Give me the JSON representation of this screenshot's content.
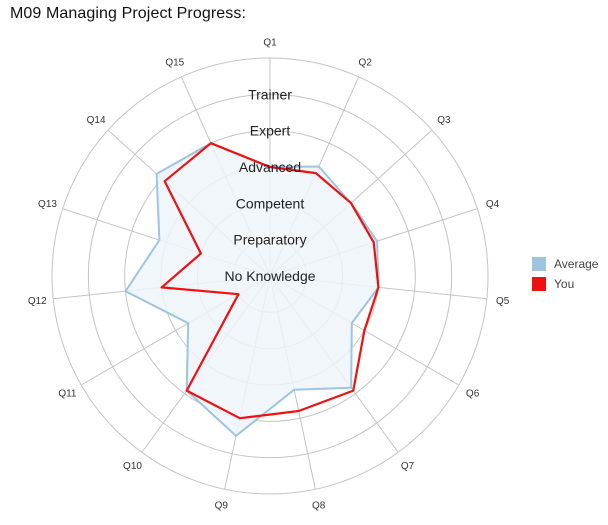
{
  "title": "M09 Managing Project Progress:",
  "chart_data": {
    "type": "radar",
    "categories": [
      "Q1",
      "Q2",
      "Q3",
      "Q4",
      "Q5",
      "Q6",
      "Q7",
      "Q8",
      "Q9",
      "Q10",
      "Q11",
      "Q12",
      "Q13",
      "Q14",
      "Q15"
    ],
    "levels": [
      "No Knowledge",
      "Preparatory",
      "Competent",
      "Advanced",
      "Expert",
      "Trainer"
    ],
    "rmax": 5,
    "series": [
      {
        "name": "Average",
        "color": "#9ec5e0",
        "fill": "#eef5fa",
        "values": [
          3.0,
          3.3,
          3.0,
          3.1,
          3.0,
          2.6,
          3.8,
          3.2,
          4.5,
          3.9,
          2.6,
          4.0,
          3.2,
          4.2,
          4.0
        ]
      },
      {
        "name": "You",
        "color": "#ee1111",
        "values": [
          3.0,
          3.1,
          3.0,
          3.0,
          3.0,
          3.0,
          3.9,
          3.8,
          4.0,
          3.9,
          1.0,
          3.0,
          2.0,
          3.9,
          4.0
        ]
      }
    ],
    "legend_position": "right"
  }
}
